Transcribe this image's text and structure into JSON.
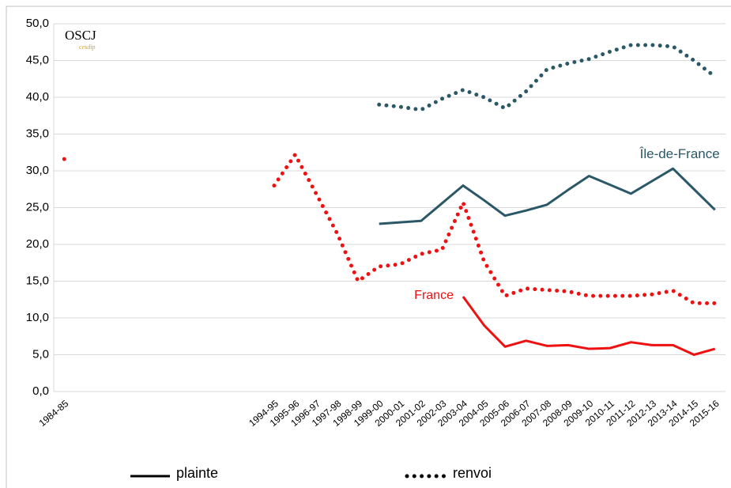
{
  "chart_data": {
    "type": "line",
    "logo": "OSCJ",
    "logo_sub": "cesdip",
    "categories": [
      "1984-85",
      null,
      null,
      null,
      null,
      null,
      null,
      null,
      null,
      null,
      "1994-95",
      "1995-96",
      "1996-97",
      "1997-98",
      "1998-99",
      "1999-00",
      "2000-01",
      "2001-02",
      "2002-03",
      "2003-04",
      "2004-05",
      "2005-06",
      "2006-07",
      "2007-08",
      "2008-09",
      "2009-10",
      "2010-11",
      "2011-12",
      "2012-13",
      "2013-14",
      "2014-15",
      "2015-16"
    ],
    "ylim": [
      0,
      50
    ],
    "yticks": [
      {
        "value": 0,
        "label": "0,0"
      },
      {
        "value": 5,
        "label": "5,0"
      },
      {
        "value": 10,
        "label": "10,0"
      },
      {
        "value": 15,
        "label": "15,0"
      },
      {
        "value": 20,
        "label": "20,0"
      },
      {
        "value": 25,
        "label": "25,0"
      },
      {
        "value": 30,
        "label": "30,0"
      },
      {
        "value": 35,
        "label": "35,0"
      },
      {
        "value": 40,
        "label": "40,0"
      },
      {
        "value": 45,
        "label": "45,0"
      },
      {
        "value": 50,
        "label": "50,0"
      }
    ],
    "grid": true,
    "legend": [
      {
        "label": "plainte",
        "dash": "solid"
      },
      {
        "label": "renvoi",
        "dash": "dotted"
      }
    ],
    "groups": [
      {
        "label": "France",
        "color": "#ee1111",
        "lines": [
          {
            "values": [
              null,
              null,
              null,
              null,
              null,
              null,
              null,
              null,
              null,
              null,
              null,
              null,
              null,
              null,
              null,
              null,
              null,
              null,
              null,
              12.9,
              9.0,
              6.1,
              6.9,
              6.2,
              6.3,
              5.8,
              5.9,
              6.7,
              6.3,
              6.3,
              5.0,
              5.8
            ]
          },
          {
            "values": [
              31.6,
              null,
              null,
              null,
              null,
              null,
              null,
              null,
              null,
              null,
              28.0,
              32.2,
              26.9,
              21.5,
              15.0,
              17.0,
              17.3,
              18.7,
              19.3,
              25.7,
              17.7,
              13.0,
              14.0,
              13.8,
              13.6,
              13.0,
              13.0,
              13.0,
              13.2,
              13.7,
              12.0,
              12.0
            ]
          }
        ]
      },
      {
        "label": "Île-de-France",
        "color": "#2b5866",
        "lines": [
          {
            "values": [
              null,
              null,
              null,
              null,
              null,
              null,
              null,
              null,
              null,
              null,
              null,
              null,
              null,
              null,
              null,
              22.8,
              23.0,
              23.2,
              25.6,
              28.0,
              26.0,
              23.9,
              24.6,
              25.4,
              27.4,
              29.3,
              28.1,
              26.9,
              28.6,
              30.3,
              27.5,
              24.7
            ]
          },
          {
            "values": [
              null,
              null,
              null,
              null,
              null,
              null,
              null,
              null,
              null,
              null,
              null,
              null,
              null,
              null,
              null,
              39.0,
              38.7,
              38.3,
              39.8,
              41.0,
              40.0,
              38.5,
              40.8,
              43.8,
              44.6,
              45.2,
              46.2,
              47.1,
              47.1,
              46.9,
              45.0,
              42.8
            ]
          }
        ]
      }
    ]
  }
}
